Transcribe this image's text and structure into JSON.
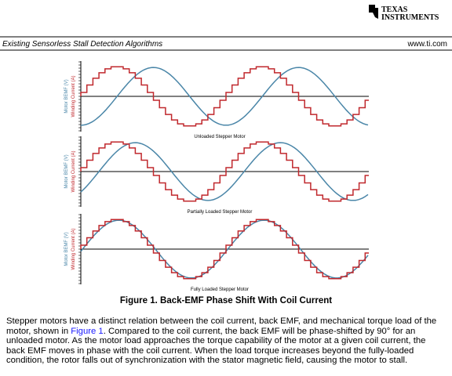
{
  "header": {
    "logo_line1": "Texas",
    "logo_line2": "Instruments",
    "section": "Existing Sensorless Stall Detection Algorithms",
    "site": "www.ti.com"
  },
  "figure": {
    "y_label_bemf": "Motor BEMF (V)",
    "y_label_current": "Winding Current (A)",
    "panels": [
      "Unloaded Stepper Motor",
      "Partially Loaded Stepper Motor",
      "Fully Loaded Stepper Motor"
    ],
    "caption": "Figure 1. Back-EMF Phase Shift With Coil Current"
  },
  "body": {
    "before": "Stepper motors have a distinct relation between the coil current, back EMF, and mechanical torque load of the motor, shown in ",
    "link": "Figure 1",
    "after": ". Compared to the coil current, the back EMF will be phase-shifted by 90° for an unloaded motor. As the motor load approaches the torque capability of the motor at a given coil current, the back EMF moves in phase with the coil current. When the load torque increases beyond the fully-loaded condition, the rotor falls out of synchronization with the stator magnetic field, causing the motor to stall."
  }
}
